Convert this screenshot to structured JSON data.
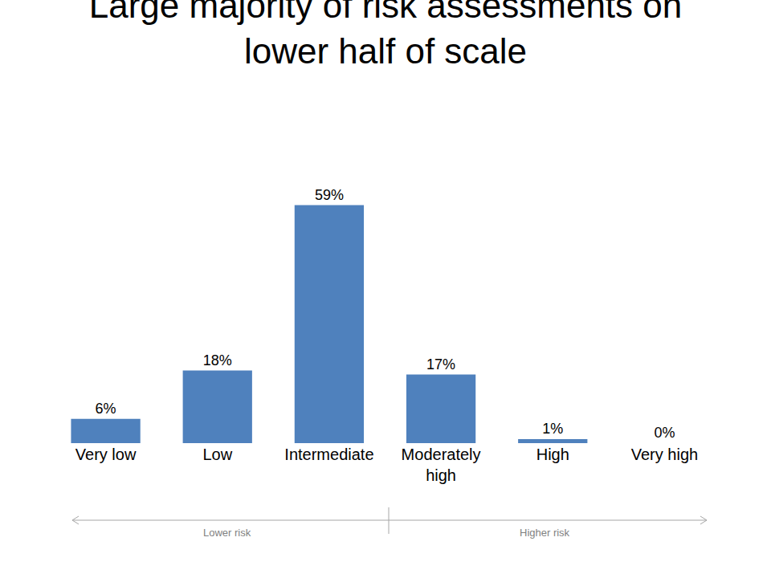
{
  "chart_data": {
    "type": "bar",
    "title": "Large majority of risk assessments on lower half of scale",
    "categories": [
      "Very low",
      "Low",
      "Intermediate",
      "Moderately high",
      "High",
      "Very high"
    ],
    "values": [
      6,
      18,
      59,
      17,
      1,
      0
    ],
    "value_labels": [
      "6%",
      "18%",
      "59%",
      "17%",
      "1%",
      "0%"
    ],
    "color": "#4f81bd",
    "data_labels": true,
    "tick_labels": "x",
    "grid": false,
    "annotations": [
      "Lower risk",
      "Higher risk"
    ]
  }
}
